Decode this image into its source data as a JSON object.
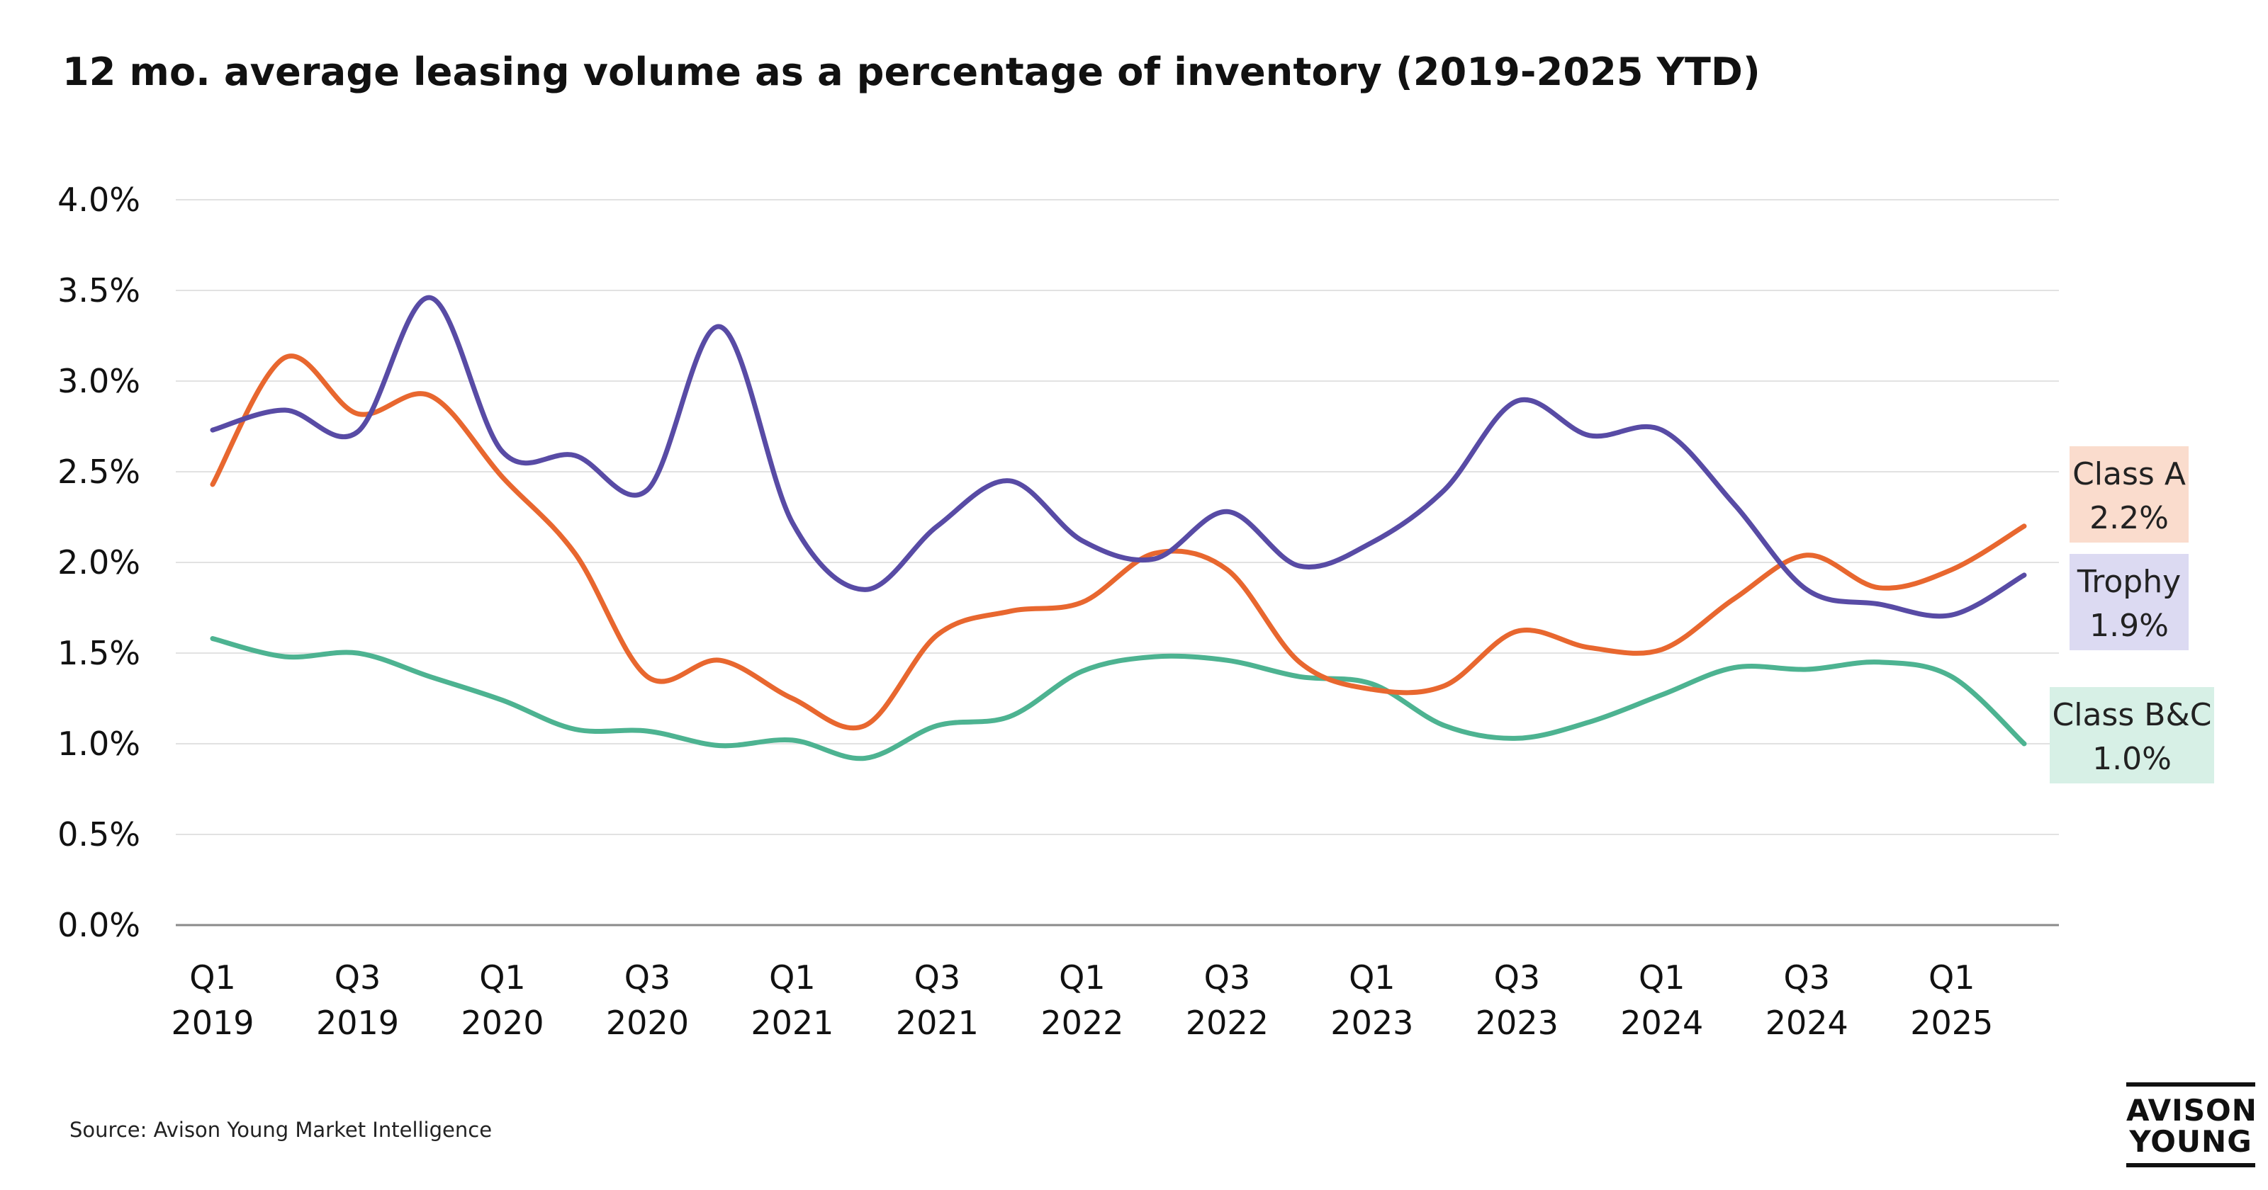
{
  "header": {
    "title": "12 mo. average leasing volume as a percentage of inventory (2019-2025 YTD)"
  },
  "footer": {
    "source": "Source: Avison Young Market Intelligence"
  },
  "logo": {
    "line1": "AVISON",
    "line2": "YOUNG"
  },
  "chart_data": {
    "type": "line",
    "title": "12 mo. average leasing volume as a percentage of inventory (2019-2025 YTD)",
    "xlabel": "",
    "ylabel": "",
    "ylim": [
      0,
      0.04
    ],
    "y_ticks": [
      "0.0%",
      "0.5%",
      "1.0%",
      "1.5%",
      "2.0%",
      "2.5%",
      "3.0%",
      "3.5%",
      "4.0%"
    ],
    "grid": true,
    "legend": "end-of-line labels",
    "x": [
      "Q1 2019",
      "Q2 2019",
      "Q3 2019",
      "Q4 2019",
      "Q1 2020",
      "Q2 2020",
      "Q3 2020",
      "Q4 2020",
      "Q1 2021",
      "Q2 2021",
      "Q3 2021",
      "Q4 2021",
      "Q1 2022",
      "Q2 2022",
      "Q3 2022",
      "Q4 2022",
      "Q1 2023",
      "Q2 2023",
      "Q3 2023",
      "Q4 2023",
      "Q1 2024",
      "Q2 2024",
      "Q3 2024",
      "Q4 2024",
      "Q1 2025",
      "Q2 2025"
    ],
    "x_tick_labels": [
      {
        "line1": "Q1",
        "line2": "2019"
      },
      {
        "line1": "Q3",
        "line2": "2019"
      },
      {
        "line1": "Q1",
        "line2": "2020"
      },
      {
        "line1": "Q3",
        "line2": "2020"
      },
      {
        "line1": "Q1",
        "line2": "2021"
      },
      {
        "line1": "Q3",
        "line2": "2021"
      },
      {
        "line1": "Q1",
        "line2": "2022"
      },
      {
        "line1": "Q3",
        "line2": "2022"
      },
      {
        "line1": "Q1",
        "line2": "2023"
      },
      {
        "line1": "Q3",
        "line2": "2023"
      },
      {
        "line1": "Q1",
        "line2": "2024"
      },
      {
        "line1": "Q3",
        "line2": "2024"
      },
      {
        "line1": "Q1",
        "line2": "2025"
      }
    ],
    "series": [
      {
        "name": "Class A",
        "color": "#E8672F",
        "label_bg": "#FADCCD",
        "end_label": {
          "line1": "Class A",
          "line2": "2.2%"
        },
        "values": [
          0.0243,
          0.0313,
          0.0282,
          0.0292,
          0.0247,
          0.0205,
          0.0137,
          0.0146,
          0.0125,
          0.011,
          0.016,
          0.0173,
          0.0178,
          0.0205,
          0.0196,
          0.0145,
          0.013,
          0.0132,
          0.0162,
          0.0153,
          0.0152,
          0.018,
          0.0204,
          0.0186,
          0.0196,
          0.022
        ]
      },
      {
        "name": "Trophy",
        "color": "#584BA5",
        "label_bg": "#DCDAF2",
        "end_label": {
          "line1": "Trophy",
          "line2": "1.9%"
        },
        "values": [
          0.0273,
          0.0284,
          0.0272,
          0.0346,
          0.0261,
          0.0259,
          0.024,
          0.033,
          0.0222,
          0.0185,
          0.022,
          0.0245,
          0.0212,
          0.0202,
          0.0228,
          0.0198,
          0.0211,
          0.024,
          0.0289,
          0.027,
          0.0273,
          0.0232,
          0.0185,
          0.0177,
          0.0171,
          0.0193
        ]
      },
      {
        "name": "Class B&C",
        "color": "#4DB391",
        "label_bg": "#D7F0E6",
        "end_label": {
          "line1": "Class B&C",
          "line2": "1.0%"
        },
        "values": [
          0.0158,
          0.0148,
          0.015,
          0.0137,
          0.0124,
          0.0108,
          0.0107,
          0.0099,
          0.0102,
          0.0092,
          0.011,
          0.0115,
          0.014,
          0.0148,
          0.0146,
          0.0137,
          0.0133,
          0.011,
          0.0103,
          0.0112,
          0.0127,
          0.0142,
          0.0141,
          0.0145,
          0.0137,
          0.01
        ]
      }
    ]
  }
}
